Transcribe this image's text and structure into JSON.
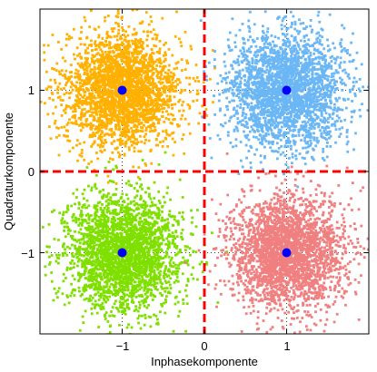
{
  "chart_data": {
    "type": "scatter",
    "title": "",
    "xlabel": "Inphasekomponente",
    "ylabel": "Quadraturkomponente",
    "xlim": [
      -2,
      2
    ],
    "ylim": [
      -2,
      2
    ],
    "x_ticks": [
      -1,
      0,
      1
    ],
    "y_ticks": [
      -1,
      0,
      1
    ],
    "x_tick_labels": [
      "−1",
      "0",
      "1"
    ],
    "y_tick_labels": [
      "−1",
      "0",
      "1"
    ],
    "grid": "dotted lines at ticks",
    "noise_spread_std": 0.35,
    "series": [
      {
        "center": [
          -1,
          1
        ],
        "color": "#FFB000",
        "points_drawn": 2600
      },
      {
        "center": [
          1,
          1
        ],
        "color": "#6BB7F5",
        "points_drawn": 2600
      },
      {
        "center": [
          -1,
          -1
        ],
        "color": "#7FE000",
        "points_drawn": 2600
      },
      {
        "center": [
          1,
          -1
        ],
        "color": "#F08080",
        "points_drawn": 2600
      }
    ],
    "constellation_points": {
      "x": [
        -1,
        1,
        -1,
        1
      ],
      "y": [
        1,
        1,
        -1,
        -1
      ],
      "color": "#0000FF"
    },
    "decision_boundaries": {
      "x": 0,
      "y": 0,
      "color": "#FF0000",
      "style": "dashed"
    }
  }
}
